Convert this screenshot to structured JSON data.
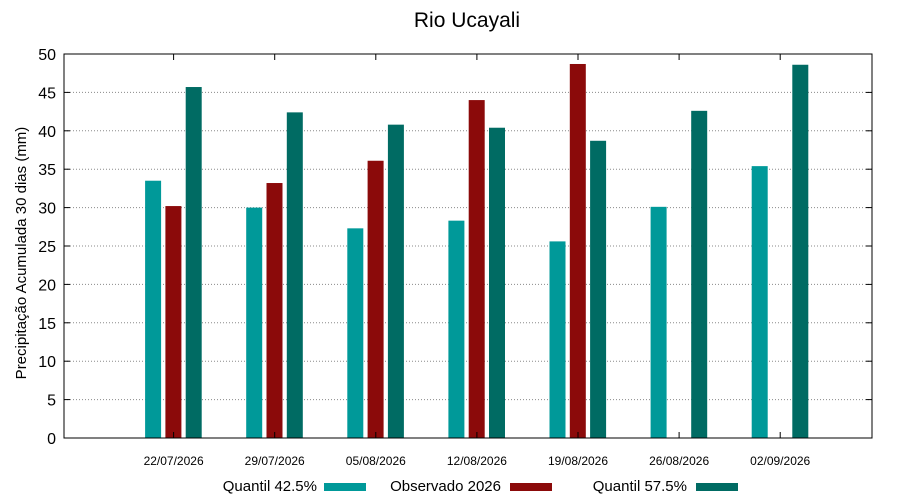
{
  "chart_data": {
    "type": "bar",
    "title": "Rio Ucayali",
    "xlabel": "",
    "ylabel": "Precipitação Acumulada 30 dias (mm)",
    "ylim": [
      0,
      50
    ],
    "yticks": [
      0,
      5,
      10,
      15,
      20,
      25,
      30,
      35,
      40,
      45,
      50
    ],
    "grid": true,
    "legend_position": "bottom",
    "categories": [
      "22/07/2026",
      "29/07/2026",
      "05/08/2026",
      "12/08/2026",
      "19/08/2026",
      "26/08/2026",
      "02/09/2026"
    ],
    "series": [
      {
        "name": "Quantil 42.5%",
        "color": "#009999",
        "values": [
          33.5,
          30.0,
          27.3,
          28.3,
          25.6,
          30.1,
          35.4
        ]
      },
      {
        "name": "Observado 2026",
        "color": "#8b0a0a",
        "values": [
          30.2,
          33.2,
          36.1,
          44.0,
          48.7,
          null,
          null
        ]
      },
      {
        "name": "Quantil 57.5%",
        "color": "#006b63",
        "values": [
          45.7,
          42.4,
          40.8,
          40.4,
          38.7,
          42.6,
          48.6
        ]
      }
    ]
  }
}
